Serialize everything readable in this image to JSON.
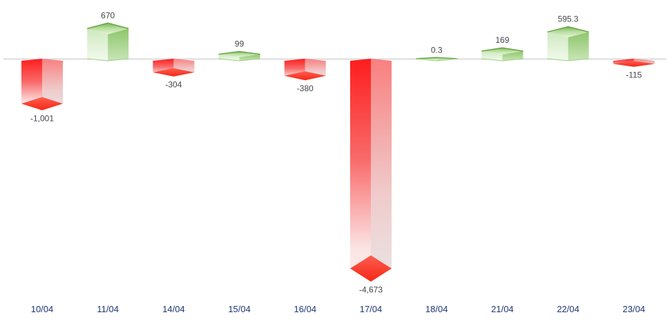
{
  "chart_data": {
    "type": "bar",
    "style": "3d-diamond-prism",
    "title": "",
    "xlabel": "",
    "ylabel": "",
    "grid": false,
    "legend": false,
    "ylim": [
      -4673,
      670
    ],
    "categories": [
      "10/04",
      "11/04",
      "14/04",
      "15/04",
      "16/04",
      "17/04",
      "18/04",
      "21/04",
      "22/04",
      "23/04"
    ],
    "values": [
      -1001,
      670,
      -304,
      99,
      -380,
      -4673,
      0.3,
      169,
      595.3,
      -115
    ],
    "value_labels": [
      "-1,001",
      "670",
      "-304",
      "99",
      "-380",
      "-4,673",
      "0.3",
      "169",
      "595.3",
      "-115"
    ],
    "colors": {
      "positive_face": "#8dc66c",
      "positive_face_light": "#cfe9bf",
      "positive_cap_edge": "#68a646",
      "negative_face": "#fd1d1d",
      "negative_face_light": "#f97f7f",
      "negative_cap_top": "#fe5e50",
      "negative_cap_bottom": "#f52715",
      "axis_line": "#d2d2d2",
      "category_label_color": "#1f3576",
      "value_label_color": "#45464d",
      "background": "#ffffff"
    }
  }
}
